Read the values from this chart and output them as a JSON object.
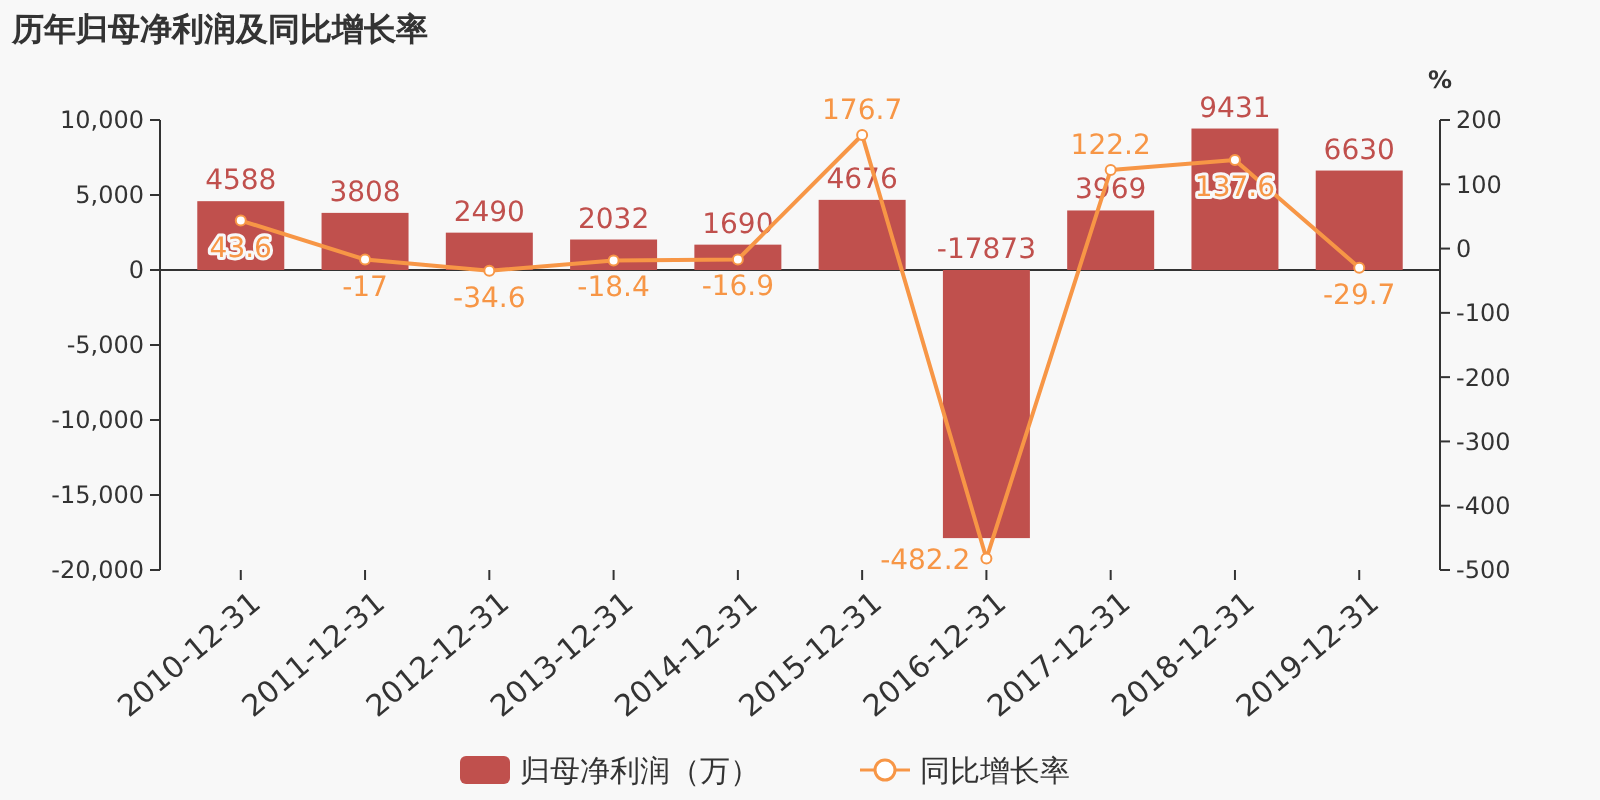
{
  "chart_data": {
    "type": "bar",
    "title": "历年归母净利润及同比增长率",
    "y2label": "%",
    "categories": [
      "2010-12-31",
      "2011-12-31",
      "2012-12-31",
      "2013-12-31",
      "2014-12-31",
      "2015-12-31",
      "2016-12-31",
      "2017-12-31",
      "2018-12-31",
      "2019-12-31"
    ],
    "series": [
      {
        "name": "归母净利润（万）",
        "color": "#c0504d",
        "values": [
          4588,
          3808,
          2490,
          2032,
          1690,
          4676,
          -17873,
          3969,
          9431,
          6630
        ]
      },
      {
        "name": "同比增长率",
        "type": "line",
        "axis": "y2",
        "color": "#f79646",
        "values": [
          43.6,
          -17,
          -34.6,
          -18.4,
          -16.9,
          176.7,
          -482.2,
          122.2,
          137.6,
          -29.7
        ]
      }
    ],
    "ylim": [
      -20000,
      10000
    ],
    "yticks": [
      {
        "value": -20000,
        "label": "-20,000"
      },
      {
        "value": -15000,
        "label": "-15,000"
      },
      {
        "value": -10000,
        "label": "-10,000"
      },
      {
        "value": -5000,
        "label": "-5,000"
      },
      0,
      {
        "value": 5000,
        "label": "5,000"
      },
      {
        "value": 10000,
        "label": "10,000"
      }
    ],
    "y2lim": [
      -500,
      200
    ],
    "y2ticks": [
      -500,
      -400,
      -300,
      -200,
      -100,
      0,
      100,
      200
    ],
    "data_labels": true,
    "legend": "bottom",
    "marker": "circle"
  }
}
